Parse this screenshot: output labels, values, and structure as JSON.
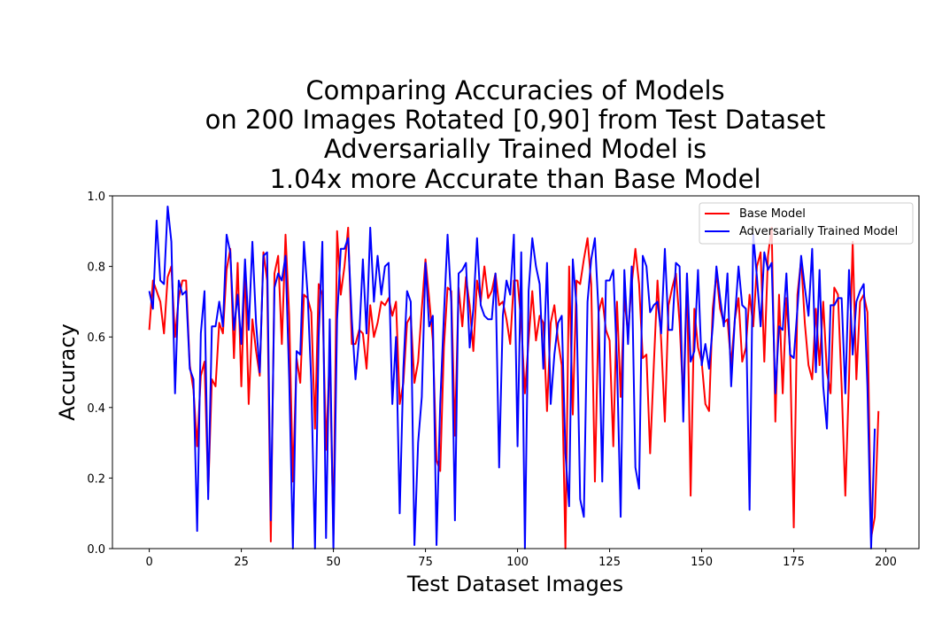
{
  "chart_data": {
    "type": "line",
    "title_lines": [
      "Comparing Accuracies of Models",
      "on 200 Images Rotated [0,90] from Test Dataset",
      "Adversarially Trained Model is",
      "1.04x more Accurate than Base Model"
    ],
    "xlabel": "Test Dataset Images",
    "ylabel": "Accuracy",
    "xlim": [
      -10,
      209
    ],
    "ylim": [
      0.0,
      1.0
    ],
    "xticks": [
      0,
      25,
      50,
      75,
      100,
      125,
      150,
      175,
      200
    ],
    "xtick_labels": [
      "0",
      "25",
      "50",
      "75",
      "100",
      "125",
      "150",
      "175",
      "200"
    ],
    "yticks": [
      0.0,
      0.2,
      0.4,
      0.6,
      0.8,
      1.0
    ],
    "ytick_labels": [
      "0.0",
      "0.2",
      "0.4",
      "0.6",
      "0.8",
      "1.0"
    ],
    "grid": false,
    "legend_position": "top-right",
    "series": [
      {
        "name": "Base Model",
        "color": "#ff0000",
        "values": [
          0.62,
          0.76,
          0.73,
          0.7,
          0.61,
          0.77,
          0.8,
          0.6,
          0.71,
          0.76,
          0.76,
          0.52,
          0.45,
          0.29,
          0.49,
          0.53,
          0.16,
          0.48,
          0.46,
          0.64,
          0.61,
          0.79,
          0.85,
          0.54,
          0.81,
          0.46,
          0.8,
          0.41,
          0.65,
          0.56,
          0.49,
          0.84,
          0.76,
          0.02,
          0.78,
          0.83,
          0.58,
          0.89,
          0.66,
          0.19,
          0.54,
          0.47,
          0.72,
          0.71,
          0.67,
          0.34,
          0.75,
          0.72,
          0.28,
          0.55,
          0.04,
          0.9,
          0.72,
          0.8,
          0.91,
          0.58,
          0.58,
          0.62,
          0.61,
          0.51,
          0.69,
          0.6,
          0.64,
          0.7,
          0.69,
          0.71,
          0.66,
          0.7,
          0.41,
          0.47,
          0.64,
          0.66,
          0.47,
          0.53,
          0.68,
          0.82,
          0.71,
          0.59,
          0.25,
          0.22,
          0.57,
          0.74,
          0.73,
          0.32,
          0.74,
          0.63,
          0.77,
          0.69,
          0.56,
          0.76,
          0.7,
          0.8,
          0.71,
          0.73,
          0.78,
          0.69,
          0.7,
          0.65,
          0.58,
          0.76,
          0.76,
          0.64,
          0.44,
          0.59,
          0.73,
          0.59,
          0.66,
          0.64,
          0.39,
          0.64,
          0.69,
          0.59,
          0.52,
          0.0,
          0.8,
          0.38,
          0.76,
          0.75,
          0.82,
          0.88,
          0.75,
          0.19,
          0.67,
          0.71,
          0.62,
          0.59,
          0.29,
          0.7,
          0.43,
          0.71,
          0.61,
          0.75,
          0.85,
          0.75,
          0.54,
          0.55,
          0.27,
          0.52,
          0.76,
          0.59,
          0.36,
          0.69,
          0.74,
          0.78,
          0.64,
          0.42,
          0.77,
          0.15,
          0.68,
          0.57,
          0.53,
          0.41,
          0.39,
          0.68,
          0.78,
          0.68,
          0.64,
          0.65,
          0.52,
          0.65,
          0.71,
          0.53,
          0.57,
          0.72,
          0.63,
          0.8,
          0.84,
          0.53,
          0.83,
          0.91,
          0.36,
          0.72,
          0.44,
          0.71,
          0.56,
          0.06,
          0.72,
          0.82,
          0.64,
          0.52,
          0.48,
          0.68,
          0.52,
          0.7,
          0.5,
          0.44,
          0.74,
          0.72,
          0.46,
          0.15,
          0.48,
          0.87,
          0.48,
          0.7,
          0.72,
          0.67,
          0.03,
          0.09,
          0.39
        ]
      },
      {
        "name": "Adversarially Trained Model",
        "color": "#0000ff",
        "values": [
          0.73,
          0.68,
          0.93,
          0.76,
          0.75,
          0.97,
          0.87,
          0.44,
          0.76,
          0.72,
          0.73,
          0.51,
          0.48,
          0.05,
          0.61,
          0.73,
          0.14,
          0.63,
          0.63,
          0.7,
          0.63,
          0.89,
          0.84,
          0.62,
          0.72,
          0.58,
          0.82,
          0.62,
          0.87,
          0.64,
          0.5,
          0.83,
          0.84,
          0.08,
          0.74,
          0.78,
          0.76,
          0.83,
          0.48,
          0.0,
          0.56,
          0.55,
          0.87,
          0.72,
          0.47,
          0.0,
          0.6,
          0.87,
          0.03,
          0.65,
          0.0,
          0.65,
          0.85,
          0.85,
          0.88,
          0.65,
          0.48,
          0.6,
          0.82,
          0.61,
          0.91,
          0.7,
          0.83,
          0.72,
          0.8,
          0.81,
          0.41,
          0.6,
          0.1,
          0.51,
          0.73,
          0.7,
          0.01,
          0.3,
          0.43,
          0.81,
          0.63,
          0.66,
          0.01,
          0.41,
          0.66,
          0.89,
          0.7,
          0.08,
          0.78,
          0.79,
          0.81,
          0.57,
          0.68,
          0.88,
          0.69,
          0.66,
          0.65,
          0.65,
          0.78,
          0.23,
          0.66,
          0.76,
          0.72,
          0.89,
          0.29,
          0.84,
          0.0,
          0.73,
          0.88,
          0.8,
          0.75,
          0.51,
          0.81,
          0.41,
          0.55,
          0.64,
          0.66,
          0.27,
          0.12,
          0.82,
          0.69,
          0.14,
          0.09,
          0.7,
          0.82,
          0.88,
          0.67,
          0.19,
          0.76,
          0.76,
          0.79,
          0.53,
          0.09,
          0.79,
          0.58,
          0.8,
          0.23,
          0.17,
          0.83,
          0.8,
          0.67,
          0.69,
          0.7,
          0.61,
          0.85,
          0.62,
          0.62,
          0.81,
          0.8,
          0.36,
          0.78,
          0.53,
          0.56,
          0.79,
          0.52,
          0.58,
          0.51,
          0.63,
          0.8,
          0.71,
          0.63,
          0.78,
          0.46,
          0.65,
          0.8,
          0.69,
          0.68,
          0.11,
          0.89,
          0.77,
          0.63,
          0.84,
          0.79,
          0.81,
          0.44,
          0.63,
          0.62,
          0.78,
          0.55,
          0.54,
          0.68,
          0.83,
          0.74,
          0.66,
          0.85,
          0.5,
          0.79,
          0.46,
          0.34,
          0.69,
          0.69,
          0.71,
          0.71,
          0.44,
          0.79,
          0.55,
          0.7,
          0.73,
          0.75,
          0.46,
          0.0,
          0.34
        ]
      }
    ]
  }
}
